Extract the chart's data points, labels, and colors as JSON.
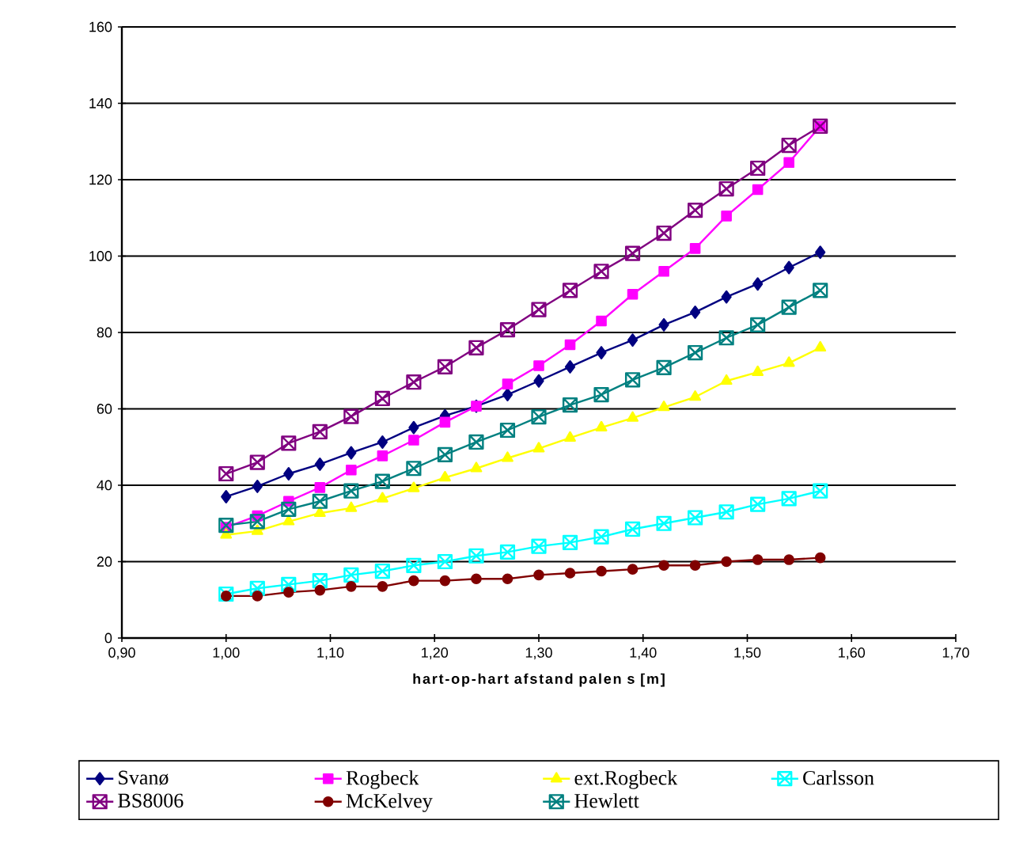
{
  "chart_data": {
    "type": "line",
    "xlabel": "hart-op-hart afstand palen s [m]",
    "x": [
      1.0,
      1.03,
      1.06,
      1.09,
      1.12,
      1.15,
      1.18,
      1.21,
      1.24,
      1.27,
      1.3,
      1.33,
      1.36,
      1.39,
      1.42,
      1.45,
      1.48,
      1.51,
      1.54,
      1.57
    ],
    "series": [
      {
        "name": "Svanø",
        "color": "#000080",
        "marker": "diamond",
        "values": [
          37,
          39.7,
          43,
          45.5,
          48.5,
          51.3,
          55.1,
          58.2,
          60.7,
          63.7,
          67.3,
          71,
          74.7,
          78,
          82,
          85.3,
          89.3,
          92.7,
          97,
          101
        ]
      },
      {
        "name": "Rogbeck",
        "color": "#ff00ff",
        "marker": "square",
        "values": [
          29,
          32,
          35.8,
          39.4,
          44,
          47.7,
          51.8,
          56.5,
          60.7,
          66.5,
          71.3,
          76.8,
          83,
          90,
          96,
          102,
          110.5,
          117.4,
          124.5,
          134
        ]
      },
      {
        "name": "ext.Rogbeck",
        "color": "#ffff00",
        "marker": "triangle",
        "values": [
          27,
          28,
          30.5,
          32.7,
          34,
          36.5,
          39.2,
          42,
          44.4,
          47.1,
          49.6,
          52.4,
          55.1,
          57.6,
          60.4,
          63.1,
          67.3,
          69.6,
          72,
          76
        ]
      },
      {
        "name": "Carlsson",
        "color": "#00ffff",
        "marker": "cross",
        "values": [
          11.5,
          13,
          14,
          15,
          16.5,
          17.5,
          19,
          20,
          21.5,
          22.5,
          24,
          25,
          26.5,
          28.5,
          30,
          31.5,
          33,
          35,
          36.5,
          38.5
        ]
      },
      {
        "name": "BS8006",
        "color": "#800080",
        "marker": "cross",
        "values": [
          43,
          46,
          51,
          54,
          58,
          62.7,
          67,
          71,
          76,
          80.7,
          86,
          91,
          96,
          100.7,
          106,
          112,
          117.6,
          123,
          129,
          134
        ]
      },
      {
        "name": "McKelvey",
        "color": "#800000",
        "marker": "circle",
        "values": [
          11,
          11,
          12,
          12.5,
          13.5,
          13.5,
          15,
          15,
          15.5,
          15.5,
          16.5,
          17,
          17.5,
          18,
          19,
          19,
          20,
          20.5,
          20.5,
          21
        ]
      },
      {
        "name": "Hewlett",
        "color": "#008080",
        "marker": "cross",
        "values": [
          29.5,
          30.5,
          33.7,
          35.8,
          38.5,
          41,
          44.4,
          48,
          51.3,
          54.4,
          57.9,
          61,
          63.7,
          67.6,
          70.8,
          74.7,
          78.6,
          82,
          86.6,
          91
        ]
      }
    ],
    "xlim": [
      0.9,
      1.7
    ],
    "ylim": [
      0,
      160
    ],
    "xticks": [
      {
        "value": 0.9,
        "label": "0,90"
      },
      {
        "value": 1.0,
        "label": "1,00"
      },
      {
        "value": 1.1,
        "label": "1,10"
      },
      {
        "value": 1.2,
        "label": "1,20"
      },
      {
        "value": 1.3,
        "label": "1,30"
      },
      {
        "value": 1.4,
        "label": "1,40"
      },
      {
        "value": 1.5,
        "label": "1,50"
      },
      {
        "value": 1.6,
        "label": "1,60"
      },
      {
        "value": 1.7,
        "label": "1,70"
      }
    ],
    "yticks": [
      0,
      20,
      40,
      60,
      80,
      100,
      120,
      140,
      160
    ],
    "grid": "y",
    "legend": "bottom"
  }
}
